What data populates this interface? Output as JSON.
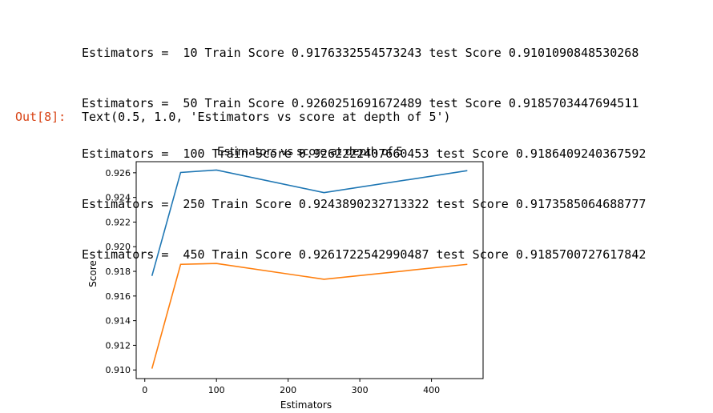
{
  "output": {
    "lines": [
      "Estimators =  10 Train Score 0.9176332554573243 test Score 0.9101090848530268",
      "Estimators =  50 Train Score 0.9260251691672489 test Score 0.9185703447694511",
      "Estimators =  100 Train Score 0.9262222407660453 test Score 0.9186409240367592",
      "Estimators =  250 Train Score 0.9243890232713322 test Score 0.9173585064688777",
      "Estimators =  450 Train Score 0.9261722542990487 test Score 0.9185700727617842"
    ],
    "out_prompt": "Out[8]:",
    "out_value": "Text(0.5, 1.0, 'Estimators vs score at depth of 5')"
  },
  "chart_data": {
    "type": "line",
    "title": "Estimators vs score at depth of 5",
    "xlabel": "Estimators",
    "ylabel": "Score",
    "x": [
      10,
      50,
      100,
      250,
      450
    ],
    "series": [
      {
        "values": [
          0.9176332554573243,
          0.9260251691672489,
          0.9262222407660453,
          0.9243890232713322,
          0.9261722542990487
        ],
        "color": "#1f77b4"
      },
      {
        "values": [
          0.9101090848530268,
          0.9185703447694511,
          0.9186409240367592,
          0.9173585064688777,
          0.9185700727617842
        ],
        "color": "#ff7f0e"
      }
    ],
    "xticks": [
      0,
      100,
      200,
      300,
      400
    ],
    "xtick_labels": [
      "0",
      "100",
      "200",
      "300",
      "400"
    ],
    "yticks": [
      0.91,
      0.912,
      0.914,
      0.916,
      0.918,
      0.92,
      0.922,
      0.924,
      0.926
    ],
    "ytick_labels": [
      "0.910",
      "0.912",
      "0.914",
      "0.916",
      "0.918",
      "0.920",
      "0.922",
      "0.924",
      "0.926"
    ],
    "xlim": [
      -12,
      472
    ],
    "ylim": [
      0.9093,
      0.9269
    ],
    "grid": false,
    "legend": false
  }
}
